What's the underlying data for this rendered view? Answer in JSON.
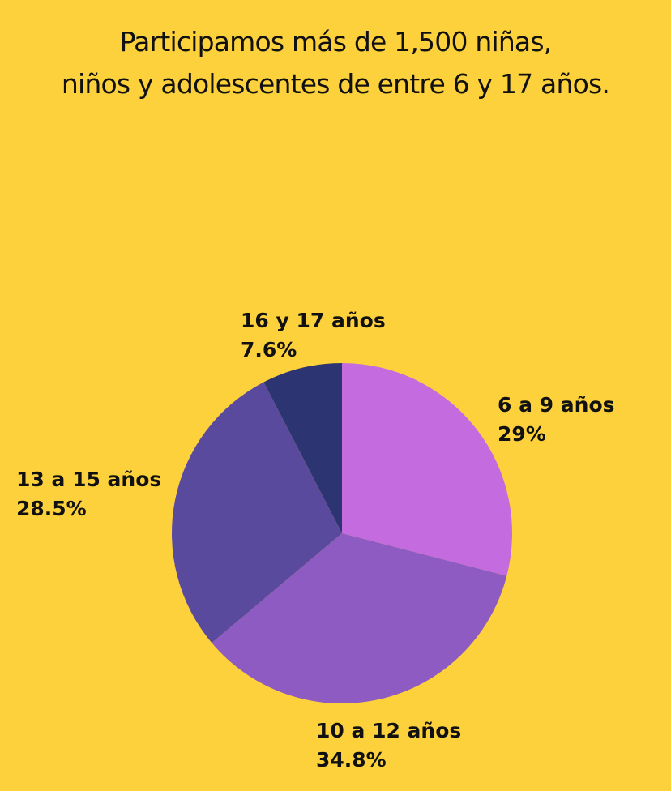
{
  "chart_data": {
    "type": "pie",
    "title": [
      "Participamos más de 1,500 niñas,",
      "niños y adolescentes de entre 6 y 17 años."
    ],
    "start_angle_deg": 0,
    "direction": "clockwise",
    "slices": [
      {
        "label": "6 a 9 años",
        "value": 29,
        "value_label": "29%",
        "color": "#c46be0"
      },
      {
        "label": "10 a 12 años",
        "value": 34.8,
        "value_label": "34.8%",
        "color": "#8d5bc2"
      },
      {
        "label": "13 a 15 años",
        "value": 28.5,
        "value_label": "28.5%",
        "color": "#5a4a9e"
      },
      {
        "label": "16 y 17 años",
        "value": 7.6,
        "value_label": "7.6%",
        "color": "#2d3472"
      }
    ]
  },
  "colors": {
    "background": "#fdd13c",
    "text": "#111111"
  }
}
